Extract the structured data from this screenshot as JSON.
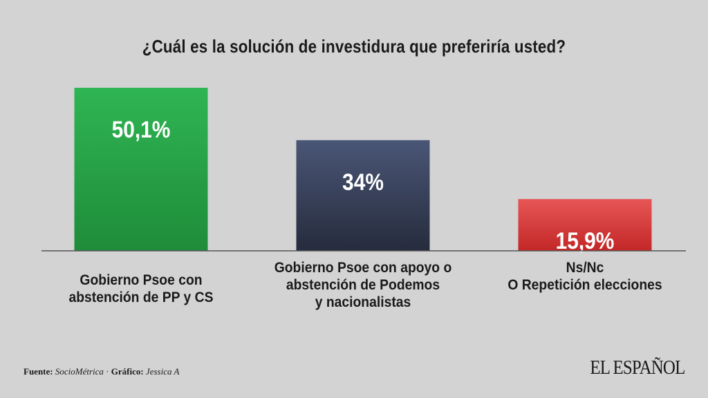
{
  "chart_data": {
    "type": "bar",
    "title": "¿Cuál es la solución de investidura que preferiría usted?",
    "categories": [
      "Gobierno Psoe con\nabstención de PP y CS",
      "Gobierno Psoe con apoyo o\nabstención de Podemos\ny nacionalistas",
      "Ns/Nc\nO Repetición elecciones"
    ],
    "values": [
      50.1,
      34,
      15.9
    ],
    "data_labels": [
      "50,1%",
      "34%",
      "15,9%"
    ],
    "colors": [
      "#2ea84a",
      "#3a4560",
      "#d83a3a"
    ],
    "ylim": [
      0,
      50.1
    ],
    "xlabel": "",
    "ylabel": "",
    "grid": false,
    "legend": "none"
  },
  "footer": {
    "source_label": "Fuente:",
    "source_value": "SocioMétrica",
    "separator": "·",
    "graphic_label": "Gráfico:",
    "graphic_value": "Jessica A"
  },
  "brand": "EL ESPAÑOL"
}
